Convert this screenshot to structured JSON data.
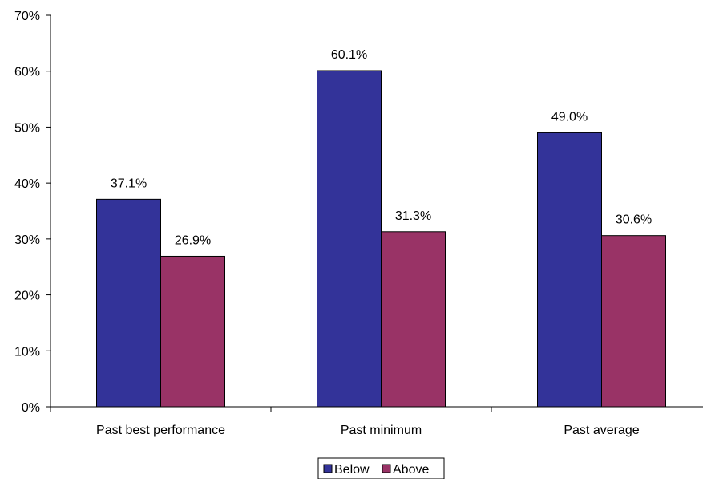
{
  "chart_data": {
    "type": "bar",
    "categories": [
      "Past best performance",
      "Past minimum",
      "Past average"
    ],
    "series": [
      {
        "name": "Below",
        "values": [
          37.1,
          60.1,
          49.0
        ],
        "labels": [
          "37.1%",
          "60.1%",
          "49.0%"
        ],
        "color": "#333399"
      },
      {
        "name": "Above",
        "values": [
          26.9,
          31.3,
          30.6
        ],
        "labels": [
          "26.9%",
          "31.3%",
          "30.6%"
        ],
        "color": "#993366"
      }
    ],
    "ylim": [
      0,
      70
    ],
    "yticks": [
      0,
      10,
      20,
      30,
      40,
      50,
      60,
      70
    ],
    "ytick_labels": [
      "0%",
      "10%",
      "20%",
      "30%",
      "40%",
      "50%",
      "60%",
      "70%"
    ],
    "grid": false,
    "legend_position": "bottom"
  }
}
